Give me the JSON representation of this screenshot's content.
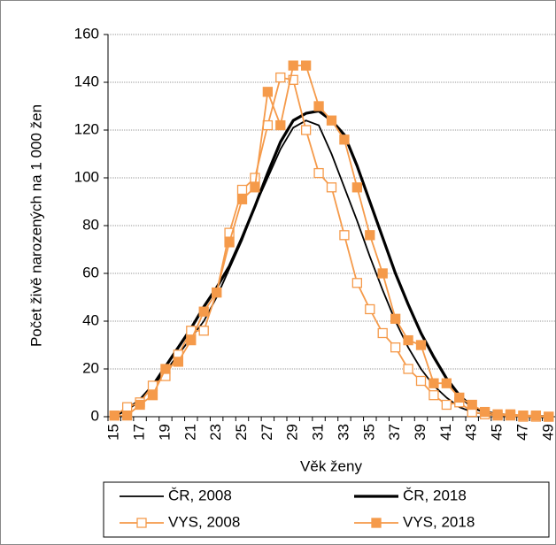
{
  "chart_data": {
    "type": "line",
    "xlabel": "Věk ženy",
    "ylabel": "Počet živě narozených na 1 000 žen",
    "categories": [
      "15",
      null,
      "17",
      null,
      "19",
      null,
      "21",
      null,
      "23",
      null,
      "25",
      null,
      "27",
      null,
      "29",
      null,
      "31",
      null,
      "33",
      null,
      "35",
      null,
      "37",
      null,
      "39",
      null,
      "41",
      null,
      "43",
      null,
      "45",
      null,
      "47",
      null,
      "49"
    ],
    "ylim": [
      0,
      160
    ],
    "yticks": [
      0,
      20,
      40,
      60,
      80,
      100,
      120,
      140,
      160
    ],
    "grid": true,
    "series": [
      {
        "name": "ČR, 2008",
        "color": "#000000",
        "width": 1.8,
        "marker": "none",
        "values": [
          0.5,
          3,
          7,
          12,
          19,
          26,
          33,
          40,
          50,
          62,
          74,
          88,
          100,
          112,
          121,
          124,
          122,
          110,
          96,
          82,
          67,
          53,
          40,
          29,
          20,
          13,
          8,
          4,
          2,
          1,
          0.5,
          0.3,
          0.1,
          0.1,
          0
        ]
      },
      {
        "name": "ČR, 2018",
        "color": "#000000",
        "width": 3.2,
        "marker": "none",
        "values": [
          0.5,
          3,
          7,
          13,
          21,
          29,
          37,
          46,
          54,
          63,
          75,
          88,
          102,
          115,
          124,
          127,
          128,
          124,
          118,
          105,
          90,
          75,
          60,
          47,
          35,
          25,
          16,
          9,
          4,
          2,
          1,
          0.5,
          0.2,
          0.1,
          0
        ]
      },
      {
        "name": "VYS, 2008",
        "color": "#f59a4a",
        "width": 1.8,
        "marker": "open",
        "values": [
          0.5,
          4,
          6,
          13,
          17,
          26,
          36,
          36,
          52,
          77,
          95,
          100,
          122,
          142,
          141,
          120,
          102,
          96,
          76,
          56,
          45,
          35,
          29,
          20,
          15,
          9,
          5,
          6,
          2,
          1,
          0.5,
          0.5,
          0,
          0,
          0
        ]
      },
      {
        "name": "VYS, 2018",
        "color": "#f59a4a",
        "width": 1.8,
        "marker": "filled",
        "values": [
          0.5,
          0.5,
          5,
          9,
          20,
          23,
          32,
          44,
          52,
          73,
          91,
          96,
          136,
          122,
          147,
          147,
          130,
          124,
          116,
          96,
          76,
          60,
          41,
          32,
          30,
          14,
          14,
          8,
          5,
          2,
          1,
          1,
          0.5,
          0.5,
          0
        ]
      }
    ]
  }
}
